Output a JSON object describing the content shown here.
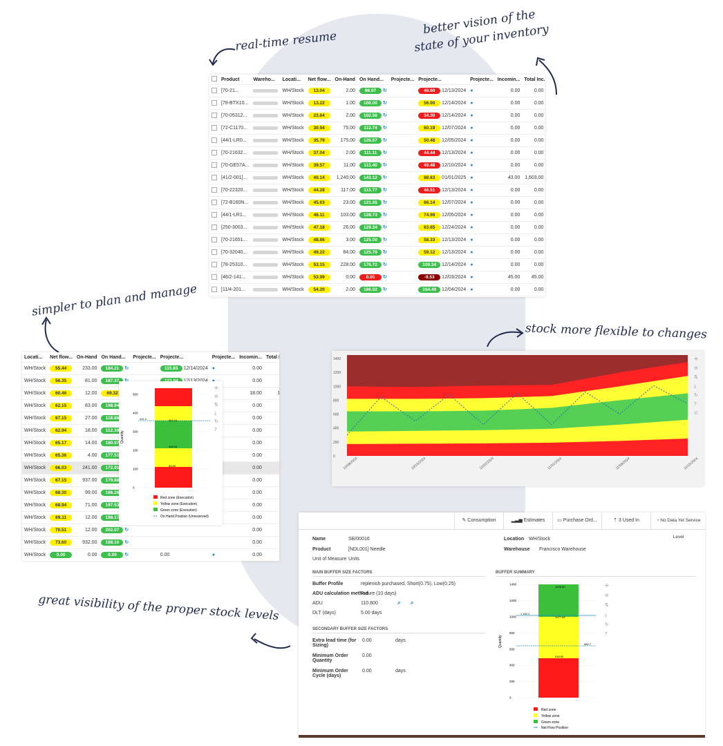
{
  "captions": {
    "realtime": "real-time resume",
    "vision": "better vision of the state of your inventory",
    "simpler": "simpler to plan and manage",
    "flexible": "stock more flexible to changes",
    "visibility": "great visibility of the proper stock levels"
  },
  "table1": {
    "headers": [
      "Product",
      "Wareho...",
      "Locati...",
      "Net flow...",
      "On-Hand",
      "On Hand...",
      "Projecte...",
      "Projecte...",
      "Projecte...",
      "Incomin...",
      "Total Inc..."
    ],
    "rows": [
      [
        "[70-21...",
        "WH/Stock",
        "13.04",
        "2.00",
        "98.97",
        "48.60",
        "12/13/2024",
        "0.00",
        "0.00",
        "y",
        "g",
        "r"
      ],
      [
        "[78-BTX10...",
        "WH/Stock",
        "13.22",
        "1.00",
        "100.00",
        "56.00",
        "12/14/2024",
        "0.00",
        "0.00",
        "y",
        "g",
        "y"
      ],
      [
        "[70-05312...",
        "WH/Stock",
        "23.84",
        "2.00",
        "102.56",
        "34.30",
        "12/14/2024",
        "0.00",
        "0.00",
        "y",
        "g",
        "r"
      ],
      [
        "[72-C1170...",
        "WH/Stock",
        "30.94",
        "75.00",
        "113.74",
        "60.19",
        "12/07/2024",
        "0.00",
        "0.00",
        "y",
        "g",
        "y"
      ],
      [
        "[44/1-LR0...",
        "WH/Stock",
        "35.79",
        "175.00",
        "126.67",
        "50.48",
        "12/05/2024",
        "0.00",
        "0.00",
        "y",
        "g",
        "y"
      ],
      [
        "[70-21632...",
        "WH/Stock",
        "37.04",
        "2.00",
        "111.11",
        "44.44",
        "12/13/2024",
        "0.00",
        "0.00",
        "y",
        "g",
        "r"
      ],
      [
        "[70-GE57A...",
        "WH/Stock",
        "39.57",
        "11.00",
        "113.40",
        "49.48",
        "12/10/2024",
        "0.00",
        "0.00",
        "y",
        "g",
        "r"
      ],
      [
        "[41/2-001]...",
        "WH/Stock",
        "40.14",
        "1,240.00",
        "143.12",
        "88.63",
        "01/01/2025",
        "43.00",
        "1,603.00",
        "y",
        "g",
        "y"
      ],
      [
        "[70-22320...",
        "WH/Stock",
        "44.28",
        "117.00",
        "113.77",
        "46.51",
        "12/13/2024",
        "0.00",
        "0.00",
        "y",
        "g",
        "r"
      ],
      [
        "[72-B160N...",
        "WH/Stock",
        "45.63",
        "23.00",
        "121.65",
        "66.14",
        "12/07/2024",
        "0.00",
        "0.00",
        "y",
        "g",
        "y"
      ],
      [
        "[44/1-LR1...",
        "WH/Stock",
        "46.11",
        "103.00",
        "128.73",
        "74.99",
        "12/05/2024",
        "0.00",
        "0.00",
        "y",
        "g",
        "y"
      ],
      [
        "[250-3003...",
        "WH/Stock",
        "47.18",
        "26.00",
        "129.34",
        "63.65",
        "12/24/2024",
        "0.00",
        "0.00",
        "y",
        "g",
        "y"
      ],
      [
        "[70-21651...",
        "WH/Stock",
        "48.86",
        "3.00",
        "125.00",
        "58.33",
        "12/13/2024",
        "0.00",
        "0.00",
        "y",
        "g",
        "y"
      ],
      [
        "[70-32040...",
        "WH/Stock",
        "49.22",
        "84.00",
        "125.79",
        "59.12",
        "12/13/2024",
        "0.00",
        "0.00",
        "y",
        "g",
        "y"
      ],
      [
        "[78-25310...",
        "WH/Stock",
        "53.15",
        "228.00",
        "176.72",
        "108.34",
        "12/14/2024",
        "0.00",
        "0.00",
        "y",
        "g",
        "g"
      ],
      [
        "[46/2-141...",
        "WH/Stock",
        "53.99",
        "0.00",
        "0.00",
        "-9.53",
        "12/03/2024",
        "45.00",
        "45.00",
        "y",
        "r",
        "dr"
      ],
      [
        "[11/4-201...",
        "WH/Stock",
        "54.20",
        "2.00",
        "186.92",
        "164.49",
        "12/04/2024",
        "0.00",
        "0.00",
        "y",
        "g",
        "g"
      ],
      [
        "[78-51308...",
        "WH/Stock",
        "54.96",
        "19.00",
        "182.09",
        "121.15",
        "12/13/2024",
        "0.00",
        "0.00",
        "y",
        "g",
        "g"
      ],
      [
        "[78-55308...",
        "WH/Stock",
        "55.44",
        "233.00",
        "184.21",
        "115.83",
        "12/14/2024",
        "0.00",
        "0.00",
        "y",
        "g",
        "g"
      ]
    ]
  },
  "table2": {
    "headers": [
      "Locati...",
      "Net flow...",
      "On-Hand",
      "On Hand...",
      "Projecte...",
      "Projecte...",
      "Projecte...",
      "Incomin...",
      "Total Inc..."
    ],
    "rows": [
      [
        "WH/Stock",
        "55.44",
        "233.00",
        "184.21",
        "115.83",
        "12/14/2024",
        "0.00",
        "0.00",
        "y",
        "g"
      ],
      [
        "WH/Stock",
        "56.35",
        "81.00",
        "187.37",
        "123.84",
        "12/13/2024",
        "0.00",
        "0.00",
        "y",
        "g"
      ],
      [
        "WH/Stock",
        "60.46",
        "12.00",
        "69.32",
        "",
        "",
        "18.00",
        "18.00",
        "y",
        "y"
      ],
      [
        "WH/Stock",
        "62.15",
        "83.00",
        "198.94",
        "",
        "",
        "0.00",
        "0.00",
        "y",
        "g"
      ],
      [
        "WH/Stock",
        "67.15",
        "27.00",
        "118.88",
        "",
        "",
        "0.00",
        "0.00",
        "y",
        "g"
      ],
      [
        "WH/Stock",
        "62.94",
        "18.00",
        "112.39",
        "",
        "",
        "0.00",
        "0.00",
        "y",
        "g"
      ],
      [
        "WH/Stock",
        "65.17",
        "14.00",
        "180.97",
        "",
        "",
        "0.00",
        "0.00",
        "y",
        "g"
      ],
      [
        "WH/Stock",
        "65.36",
        "4.00",
        "177.51",
        "",
        "",
        "0.00",
        "0.00",
        "y",
        "g"
      ],
      [
        "WH/Stock",
        "66.03",
        "241.00",
        "172.91",
        "",
        "",
        "0.00",
        "0.00",
        "y",
        "g"
      ],
      [
        "WH/Stock",
        "67.15",
        "937.00",
        "179.88",
        "",
        "",
        "0.00",
        "0.00",
        "y",
        "g"
      ],
      [
        "WH/Stock",
        "68.30",
        "99.00",
        "186.28",
        "",
        "",
        "0.00",
        "0.00",
        "y",
        "g"
      ],
      [
        "WH/Stock",
        "68.94",
        "71.00",
        "197.53",
        "",
        "",
        "0.00",
        "0.00",
        "y",
        "g"
      ],
      [
        "WH/Stock",
        "69.11",
        "12.00",
        "198.17",
        "",
        "",
        "0.00",
        "0.00",
        "y",
        "g"
      ],
      [
        "WH/Stock",
        "70.51",
        "12.00",
        "202.07",
        "",
        "",
        "0.00",
        "0.00",
        "y",
        "g"
      ],
      [
        "WH/Stock",
        "73.60",
        "932.00",
        "188.19",
        "",
        "",
        "0.00",
        "0.00",
        "y",
        "g"
      ],
      [
        "WH/Stock",
        "0.00",
        "0.00",
        "0.00",
        "0.00",
        "",
        "0.00",
        "0.00",
        "g",
        "g"
      ],
      [
        "WH/Stock",
        "0.00",
        "0.00",
        "0.00",
        "0.00",
        "",
        "30.00",
        "30.00",
        "g",
        "g"
      ],
      [
        "WH/Stock",
        "0.00",
        "0.00",
        "0.00",
        "0.00",
        "",
        "0.00",
        "0.00",
        "g",
        "g"
      ]
    ]
  },
  "popup_chart": {
    "ylabel": "Quantity",
    "yticks": [
      "0",
      "100",
      "200",
      "300",
      "400",
      "500"
    ],
    "labels": [
      "541.10",
      "241.0",
      "348.34",
      "89.59"
    ],
    "legend": [
      "Red zone (Execution)",
      "Yellow zone (Execution)",
      "Green zone (Execution)",
      "On Hand Position (Unreserved)"
    ]
  },
  "chart_data": {
    "type": "area",
    "title": "",
    "xlabel": "",
    "ylabel": "",
    "ylim": [
      0,
      1450
    ],
    "yticks": [
      0,
      200,
      400,
      600,
      800,
      1000,
      1200,
      1400
    ],
    "x": [
      "10/08/2024",
      "10/15/2024",
      "10/22/2024",
      "11/01/2024",
      "11/08/2024",
      "11/15/2024"
    ],
    "series": [
      {
        "color": "#ff2222",
        "values": [
          170,
          175,
          180,
          190,
          215,
          250
        ]
      },
      {
        "color": "#ffff33",
        "values": [
          350,
          360,
          370,
          390,
          450,
          520
        ]
      },
      {
        "color": "#55d055",
        "values": [
          640,
          640,
          650,
          690,
          800,
          900
        ]
      },
      {
        "color": "#ffff33",
        "values": [
          820,
          820,
          830,
          860,
          1000,
          1150
        ]
      },
      {
        "color": "#ff2222",
        "values": [
          1000,
          990,
          1010,
          1020,
          1200,
          1350
        ]
      }
    ],
    "line": [
      300,
      850,
      500,
      880,
      450,
      900,
      450,
      920,
      600,
      1010,
      750
    ]
  },
  "detail": {
    "toolbar": [
      "Consumption",
      "Estimates",
      "Purchase Ord...",
      "3 Used In",
      "No Data Yet Service Level"
    ],
    "name_label": "Name",
    "name": "SB/00016",
    "product_label": "Product",
    "product": "[NDL001] Needle",
    "uom_label": "Unit of Measure",
    "uom": "Units",
    "location_label": "Location",
    "location": "WH/Stock",
    "warehouse_label": "Warehouse",
    "warehouse": "Francisco Warehouse",
    "main_section": "MAIN BUFFER SIZE FACTORS",
    "profile_label": "Buffer Profile",
    "profile": "replenish purchased, Short(0.75), Low(0.25)",
    "adu_method_label": "ADU calculation method",
    "adu_method": "Future (10 days)",
    "adu_label": "ADU",
    "adu": "110.800",
    "dlt_label": "DLT (days)",
    "dlt": "5.00 days",
    "secondary_section": "SECONDARY BUFFER SIZE FACTORS",
    "extra_label": "Extra lead time (for Sizing)",
    "extra": "0.00",
    "extra_unit": "days",
    "moq_label": "Minimum Order Quantity",
    "moq": "0.00",
    "moc_label": "Minimum Order Cycle (days)",
    "moc": "0.00",
    "moc_unit": "days",
    "summary_section": "BUFFER SUMMARY",
    "summary_ylabel": "Quantity",
    "summary_yticks": [
      "0",
      "200",
      "400",
      "600",
      "800",
      "1000",
      "1200",
      "1400"
    ],
    "summary_labels": [
      "1435.50",
      "1077.98",
      "1 182.2",
      "680.7",
      "518.50"
    ],
    "summary_legend": [
      "Red zone",
      "Yellow zone",
      "Green zone",
      "Net Flow Position"
    ]
  }
}
